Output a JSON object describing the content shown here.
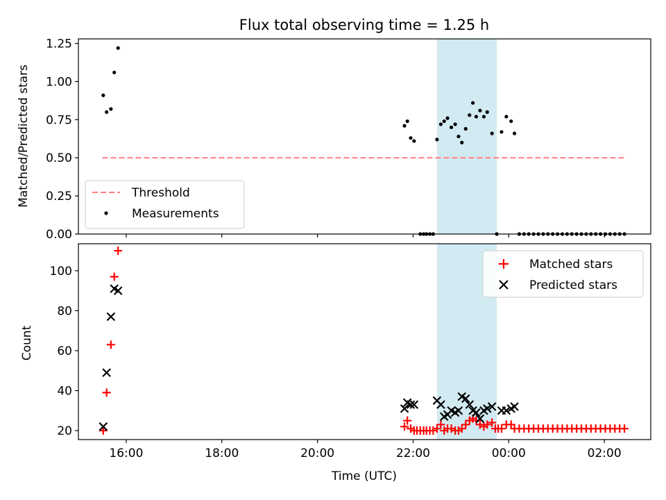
{
  "chart_data": {
    "title": "Flux total observing time = 1.25 h",
    "xlabel": "Time (UTC)",
    "x_axis": {
      "type": "time",
      "unit": "hours since 00:00 UTC on the first day",
      "range": [
        15.0,
        26.97
      ]
    },
    "x_ticks": [
      {
        "label": "16:00",
        "value": 16
      },
      {
        "label": "18:00",
        "value": 18
      },
      {
        "label": "20:00",
        "value": 20
      },
      {
        "label": "22:00",
        "value": 22
      },
      {
        "label": "00:00",
        "value": 24
      },
      {
        "label": "02:00",
        "value": 26
      }
    ],
    "shaded_interval": {
      "x": [
        22.5,
        23.75
      ],
      "color": "#add8e6"
    },
    "panels": [
      {
        "type": "scatter",
        "ylabel": "Matched/Predicted stars",
        "ylim": [
          0,
          1.28
        ],
        "yticks": [
          "0.00",
          "0.25",
          "0.50",
          "0.75",
          "1.00",
          "1.25"
        ],
        "threshold": {
          "name": "Threshold",
          "y": 0.5,
          "x": [
            15.5,
            26.42
          ],
          "color": "#ff7f7f",
          "style": "dashed"
        },
        "legend": {
          "placement": "lower left",
          "entries": [
            "Threshold",
            "Measurements"
          ]
        },
        "series": [
          {
            "name": "Measurements",
            "marker": "dot",
            "color": "#000000",
            "points": [
              [
                15.52,
                0.91
              ],
              [
                15.59,
                0.8
              ],
              [
                15.68,
                0.82
              ],
              [
                15.75,
                1.06
              ],
              [
                15.83,
                1.22
              ],
              [
                21.82,
                0.71
              ],
              [
                21.88,
                0.74
              ],
              [
                21.95,
                0.63
              ],
              [
                22.02,
                0.61
              ],
              [
                22.15,
                0.0
              ],
              [
                22.22,
                0.0
              ],
              [
                22.28,
                0.0
              ],
              [
                22.35,
                0.0
              ],
              [
                22.42,
                0.0
              ],
              [
                22.5,
                0.62
              ],
              [
                22.58,
                0.72
              ],
              [
                22.65,
                0.74
              ],
              [
                22.72,
                0.76
              ],
              [
                22.8,
                0.7
              ],
              [
                22.88,
                0.72
              ],
              [
                22.95,
                0.64
              ],
              [
                23.02,
                0.6
              ],
              [
                23.1,
                0.69
              ],
              [
                23.18,
                0.78
              ],
              [
                23.25,
                0.86
              ],
              [
                23.32,
                0.77
              ],
              [
                23.4,
                0.81
              ],
              [
                23.48,
                0.77
              ],
              [
                23.55,
                0.8
              ],
              [
                23.65,
                0.66
              ],
              [
                23.75,
                0.0
              ],
              [
                23.85,
                0.67
              ],
              [
                23.95,
                0.77
              ],
              [
                24.05,
                0.74
              ],
              [
                24.12,
                0.66
              ],
              [
                24.22,
                0.0
              ],
              [
                24.32,
                0.0
              ],
              [
                24.42,
                0.0
              ],
              [
                24.52,
                0.0
              ],
              [
                24.62,
                0.0
              ],
              [
                24.72,
                0.0
              ],
              [
                24.82,
                0.0
              ],
              [
                24.92,
                0.0
              ],
              [
                25.02,
                0.0
              ],
              [
                25.12,
                0.0
              ],
              [
                25.22,
                0.0
              ],
              [
                25.32,
                0.0
              ],
              [
                25.42,
                0.0
              ],
              [
                25.52,
                0.0
              ],
              [
                25.62,
                0.0
              ],
              [
                25.72,
                0.0
              ],
              [
                25.82,
                0.0
              ],
              [
                25.92,
                0.0
              ],
              [
                26.02,
                0.0
              ],
              [
                26.12,
                0.0
              ],
              [
                26.22,
                0.0
              ],
              [
                26.32,
                0.0
              ],
              [
                26.42,
                0.0
              ]
            ]
          }
        ]
      },
      {
        "type": "scatter",
        "ylabel": "Count",
        "ylim": [
          15.5,
          113.5
        ],
        "yticks": [
          "20",
          "40",
          "60",
          "80",
          "100"
        ],
        "legend": {
          "placement": "upper right",
          "entries": [
            "Matched stars",
            "Predicted stars"
          ]
        },
        "series": [
          {
            "name": "Matched stars",
            "marker": "plus",
            "color": "#ff0000",
            "points": [
              [
                15.52,
                20
              ],
              [
                15.59,
                39
              ],
              [
                15.68,
                63
              ],
              [
                15.75,
                97
              ],
              [
                15.83,
                110
              ],
              [
                21.82,
                22
              ],
              [
                21.88,
                25
              ],
              [
                21.95,
                21
              ],
              [
                22.02,
                20
              ],
              [
                22.08,
                20
              ],
              [
                22.15,
                20
              ],
              [
                22.22,
                20
              ],
              [
                22.28,
                20
              ],
              [
                22.35,
                20
              ],
              [
                22.42,
                20
              ],
              [
                22.5,
                21
              ],
              [
                22.58,
                23
              ],
              [
                22.65,
                20
              ],
              [
                22.72,
                21
              ],
              [
                22.8,
                21
              ],
              [
                22.88,
                20
              ],
              [
                22.95,
                20
              ],
              [
                23.02,
                21
              ],
              [
                23.1,
                23
              ],
              [
                23.18,
                25
              ],
              [
                23.25,
                26
              ],
              [
                23.32,
                25
              ],
              [
                23.4,
                23
              ],
              [
                23.48,
                22
              ],
              [
                23.55,
                23
              ],
              [
                23.65,
                24
              ],
              [
                23.72,
                21
              ],
              [
                23.78,
                21
              ],
              [
                23.85,
                21
              ],
              [
                23.95,
                23
              ],
              [
                24.05,
                23
              ],
              [
                24.12,
                21
              ],
              [
                24.22,
                21
              ],
              [
                24.32,
                21
              ],
              [
                24.42,
                21
              ],
              [
                24.52,
                21
              ],
              [
                24.62,
                21
              ],
              [
                24.72,
                21
              ],
              [
                24.82,
                21
              ],
              [
                24.92,
                21
              ],
              [
                25.02,
                21
              ],
              [
                25.12,
                21
              ],
              [
                25.22,
                21
              ],
              [
                25.32,
                21
              ],
              [
                25.42,
                21
              ],
              [
                25.52,
                21
              ],
              [
                25.62,
                21
              ],
              [
                25.72,
                21
              ],
              [
                25.82,
                21
              ],
              [
                25.92,
                21
              ],
              [
                26.02,
                21
              ],
              [
                26.12,
                21
              ],
              [
                26.22,
                21
              ],
              [
                26.32,
                21
              ],
              [
                26.42,
                21
              ]
            ]
          },
          {
            "name": "Predicted stars",
            "marker": "x",
            "color": "#000000",
            "points": [
              [
                15.52,
                22
              ],
              [
                15.59,
                49
              ],
              [
                15.68,
                77
              ],
              [
                15.75,
                91
              ],
              [
                15.83,
                90
              ],
              [
                21.82,
                31
              ],
              [
                21.88,
                34
              ],
              [
                21.95,
                33
              ],
              [
                22.02,
                33
              ],
              [
                22.5,
                35
              ],
              [
                22.58,
                33
              ],
              [
                22.65,
                27
              ],
              [
                22.72,
                28
              ],
              [
                22.8,
                30
              ],
              [
                22.88,
                29
              ],
              [
                22.95,
                30
              ],
              [
                23.02,
                37
              ],
              [
                23.1,
                36
              ],
              [
                23.18,
                33
              ],
              [
                23.25,
                30
              ],
              [
                23.32,
                29
              ],
              [
                23.4,
                26
              ],
              [
                23.48,
                30
              ],
              [
                23.55,
                31
              ],
              [
                23.65,
                32
              ],
              [
                23.85,
                30
              ],
              [
                23.95,
                30
              ],
              [
                24.05,
                31
              ],
              [
                24.12,
                32
              ]
            ]
          }
        ]
      }
    ]
  }
}
